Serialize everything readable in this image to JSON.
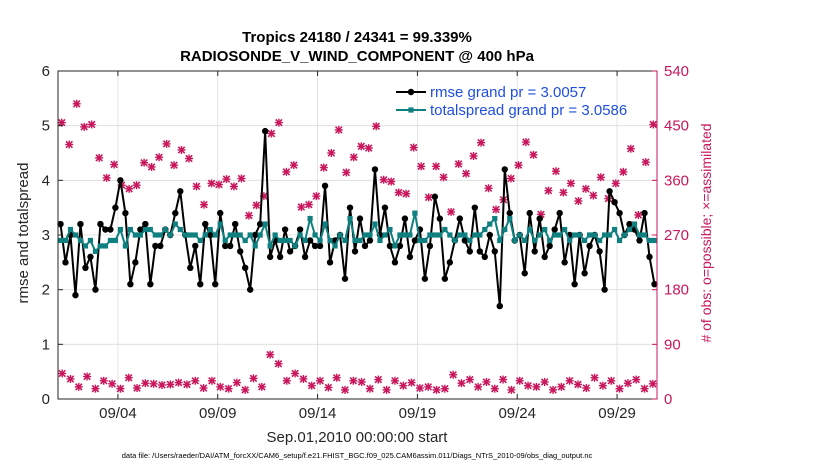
{
  "chart_data": {
    "type": "line",
    "title_line1": "Tropics 24180 / 24341 = 99.339%",
    "title_line2": "RADIOSONDE_V_WIND_COMPONENT @ 400 hPa",
    "xlabel": "Sep.01,2010 00:00:00 start",
    "ylabel_left": "rmse and totalspread",
    "ylabel_right": "# of obs: o=possible; ×=assimilated",
    "footnote": "data file: /Users/raeder/DAI/ATM_forcXX/CAM6_setup/f.e21.FHIST_BGC.f09_025.CAM6assim.011/Diags_NTrS_2010-09/obs_diag_output.nc",
    "x_range": [
      0.5,
      30.5
    ],
    "ylim_left": [
      0,
      6
    ],
    "ylim_right": [
      0,
      540
    ],
    "x_ticks": [
      3.5,
      8.5,
      13.5,
      18.5,
      23.5,
      28.5
    ],
    "x_tick_labels": [
      "09/04",
      "09/09",
      "09/14",
      "09/19",
      "09/24",
      "09/29"
    ],
    "y_ticks_left": [
      0,
      1,
      2,
      3,
      4,
      5,
      6
    ],
    "y_tick_labels_left": [
      "0",
      "1",
      "2",
      "3",
      "4",
      "5",
      "6"
    ],
    "y_ticks_right": [
      0,
      90,
      180,
      270,
      360,
      450,
      540
    ],
    "y_tick_labels_right": [
      "0",
      "90",
      "180",
      "270",
      "360",
      "450",
      "540"
    ],
    "legend": [
      {
        "label": "rmse grand pr = 3.0057",
        "color": "#000000"
      },
      {
        "label": "totalspread grand pr = 3.0586",
        "color": "#0f7f7f"
      }
    ],
    "colors": {
      "rmse": "#000000",
      "spread": "#0f7f7f",
      "obs": "#c8175d",
      "grid": "#dcdcdc",
      "axis": "#262626"
    },
    "series": [
      {
        "name": "rmse",
        "axis": "left",
        "values": [
          3.2,
          2.5,
          3.0,
          1.9,
          3.2,
          2.4,
          2.6,
          2.0,
          3.2,
          3.1,
          3.1,
          3.5,
          4.0,
          3.4,
          2.1,
          2.5,
          3.1,
          3.2,
          2.1,
          2.8,
          2.8,
          3.1,
          3.0,
          3.4,
          3.8,
          3.0,
          2.4,
          2.8,
          2.1,
          3.2,
          3.0,
          2.1,
          3.4,
          2.8,
          2.8,
          3.2,
          2.7,
          2.4,
          2.0,
          3.0,
          3.2,
          4.9,
          2.6,
          2.9,
          2.6,
          3.1,
          2.7,
          2.8,
          3.1,
          2.6,
          2.9,
          2.8,
          2.8,
          3.9,
          2.5,
          2.9,
          3.0,
          2.2,
          3.5,
          2.7,
          3.3,
          2.8,
          2.9,
          4.2,
          3.0,
          3.5,
          2.8,
          2.5,
          2.8,
          3.3,
          2.6,
          2.9,
          3.1,
          2.2,
          2.8,
          3.7,
          3.3,
          2.2,
          2.5,
          2.9,
          3.3,
          2.9,
          2.7,
          3.5,
          2.7,
          2.6,
          3.0,
          2.7,
          1.7,
          4.2,
          3.4,
          2.9,
          3.0,
          2.3,
          3.4,
          2.7,
          3.3,
          2.6,
          2.8,
          3.1,
          3.4,
          2.5,
          3.0,
          2.1,
          3.0,
          2.3,
          2.8,
          3.0,
          2.7,
          2.0,
          3.8,
          3.6,
          3.4,
          3.0,
          3.2,
          3.1,
          2.9,
          3.4,
          2.6,
          2.1
        ]
      },
      {
        "name": "totalspread",
        "axis": "left",
        "values": [
          2.9,
          2.9,
          3.1,
          3.0,
          2.9,
          2.8,
          2.9,
          2.7,
          2.8,
          2.8,
          2.9,
          2.9,
          3.1,
          2.8,
          3.1,
          3.0,
          3.0,
          3.1,
          3.1,
          3.0,
          3.0,
          3.1,
          3.0,
          3.2,
          3.1,
          3.0,
          3.0,
          3.0,
          2.9,
          3.0,
          3.1,
          3.0,
          3.2,
          2.9,
          3.0,
          3.0,
          3.0,
          2.9,
          3.0,
          2.8,
          3.0,
          3.2,
          2.8,
          3.0,
          2.9,
          2.9,
          2.9,
          2.8,
          3.0,
          2.9,
          3.3,
          3.0,
          2.9,
          3.2,
          2.9,
          2.8,
          3.0,
          2.9,
          3.3,
          2.9,
          2.9,
          3.0,
          3.0,
          3.2,
          2.9,
          3.0,
          3.1,
          2.8,
          3.0,
          3.0,
          3.0,
          3.4,
          2.9,
          2.9,
          3.0,
          3.0,
          3.0,
          3.1,
          3.0,
          2.9,
          3.0,
          3.0,
          2.9,
          3.0,
          3.0,
          3.1,
          3.2,
          3.3,
          2.9,
          3.1,
          3.3,
          2.9,
          3.0,
          2.9,
          3.1,
          2.9,
          3.0,
          3.1,
          2.9,
          3.0,
          3.0,
          3.1,
          2.9,
          3.0,
          3.0,
          2.9,
          3.0,
          3.0,
          2.9,
          3.0,
          3.0,
          3.1,
          2.9,
          3.0,
          3.1,
          3.2,
          3.0,
          3.0,
          2.9,
          2.9
        ]
      },
      {
        "name": "obs_possible_high",
        "axis": "right",
        "values": [
          455,
          419,
          486,
          448,
          452,
          397,
          364,
          386,
          352,
          346,
          352,
          389,
          382,
          398,
          420,
          385,
          410,
          396,
          350,
          320,
          355,
          353,
          362,
          350,
          363,
          302,
          319,
          334,
          437,
          455,
          374,
          385,
          316,
          320,
          334,
          381,
          405,
          443,
          373,
          398,
          416,
          413,
          449,
          361,
          358,
          340,
          338,
          414,
          383,
          332,
          383,
          365,
          308,
          387,
          371,
          400,
          422,
          347,
          312,
          328,
          363,
          385,
          423,
          402,
          304,
          343,
          375,
          340,
          355,
          326,
          346,
          335,
          365,
          330,
          355,
          374,
          412,
          303,
          390,
          452
        ]
      },
      {
        "name": "obs_possible_low",
        "axis": "right",
        "values": [
          42,
          33,
          20,
          37,
          17,
          30,
          25,
          17,
          35,
          18,
          26,
          25,
          23,
          24,
          27,
          24,
          30,
          18,
          30,
          20,
          17,
          27,
          15,
          34,
          20,
          73,
          58,
          30,
          42,
          33,
          22,
          30,
          19,
          35,
          15,
          30,
          28,
          17,
          32,
          15,
          30,
          22,
          27,
          18,
          20,
          15,
          17,
          40,
          26,
          32,
          20,
          28,
          17,
          32,
          15,
          30,
          22,
          20,
          28,
          15,
          20,
          30,
          24,
          18,
          35,
          22,
          30,
          17,
          26,
          32,
          17,
          25
        ]
      }
    ],
    "ticks_x_note": "x in days since Sep.01, 09/04 at day 3.5"
  }
}
